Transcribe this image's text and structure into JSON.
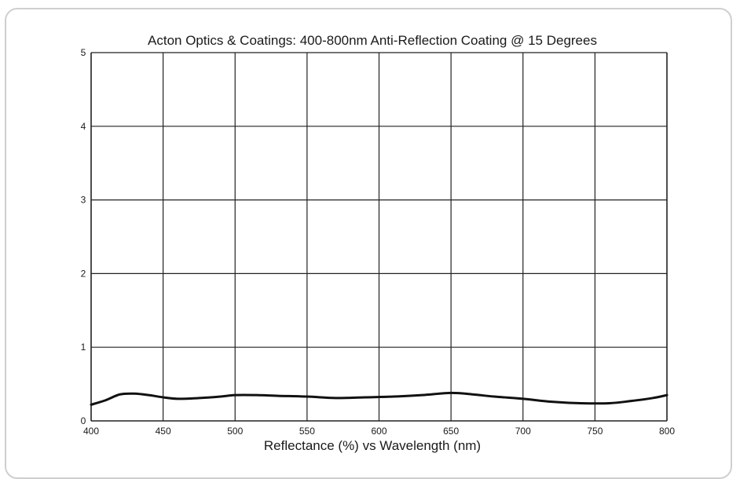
{
  "chart_data": {
    "type": "line",
    "title": "Acton Optics & Coatings: 400-800nm Anti-Reflection Coating @ 15 Degrees",
    "xlabel": "Reflectance (%)  vs  Wavelength (nm)",
    "ylabel": "",
    "xlim": [
      400,
      800
    ],
    "ylim": [
      0,
      5
    ],
    "xticks": [
      "400",
      "450",
      "500",
      "550",
      "600",
      "650",
      "700",
      "750",
      "800"
    ],
    "yticks": [
      "0",
      "1",
      "2",
      "3",
      "4",
      "5"
    ],
    "grid": true,
    "line_color": "#111111",
    "series": [
      {
        "x": [
          400,
          410,
          420,
          430,
          440,
          450,
          460,
          475,
          490,
          500,
          515,
          530,
          550,
          570,
          590,
          610,
          630,
          650,
          665,
          680,
          700,
          720,
          740,
          760,
          775,
          790,
          800
        ],
        "y": [
          0.22,
          0.28,
          0.36,
          0.37,
          0.35,
          0.32,
          0.3,
          0.31,
          0.33,
          0.35,
          0.35,
          0.34,
          0.33,
          0.31,
          0.32,
          0.33,
          0.35,
          0.38,
          0.36,
          0.33,
          0.3,
          0.26,
          0.24,
          0.24,
          0.27,
          0.31,
          0.35
        ]
      }
    ]
  }
}
